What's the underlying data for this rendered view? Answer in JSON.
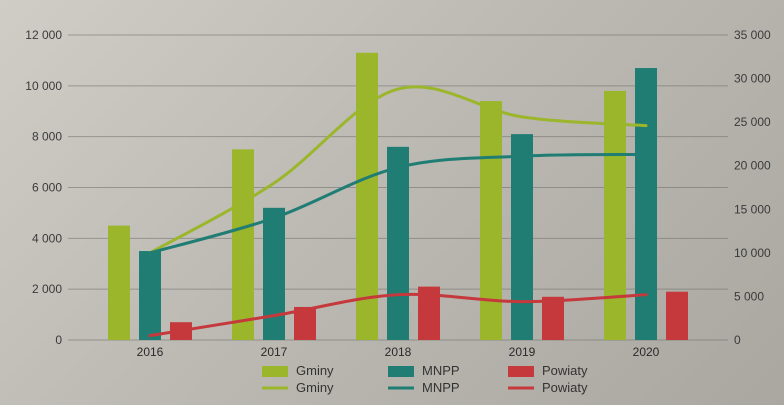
{
  "chart_data": {
    "type": "bar",
    "categories": [
      "2016",
      "2017",
      "2018",
      "2019",
      "2020"
    ],
    "left_axis": {
      "ylim": [
        0,
        12000
      ],
      "ticks": [
        "0",
        "2 000",
        "4 000",
        "6 000",
        "8 000",
        "10 000",
        "12 000"
      ]
    },
    "right_axis": {
      "ylim": [
        0,
        35000
      ],
      "ticks": [
        "0",
        "5 000",
        "10 000",
        "15 000",
        "20 000",
        "25 000",
        "30 000",
        "35 000"
      ]
    },
    "bar_series": [
      {
        "name": "Gminy",
        "axis": "left",
        "color": "#9bb62a",
        "values": [
          4500,
          7500,
          11300,
          9400,
          9800
        ]
      },
      {
        "name": "MNPP",
        "axis": "left",
        "color": "#1f7d74",
        "values": [
          3500,
          5200,
          7600,
          8100,
          10700
        ]
      },
      {
        "name": "Powiaty",
        "axis": "left",
        "color": "#c5383c",
        "values": [
          700,
          1300,
          2100,
          1700,
          1900
        ]
      }
    ],
    "line_series": [
      {
        "name": "Gminy",
        "axis": "right",
        "color": "#9bb62a",
        "values": [
          10000,
          18000,
          28800,
          25600,
          24600
        ]
      },
      {
        "name": "MNPP",
        "axis": "right",
        "color": "#1f7d74",
        "values": [
          10000,
          14000,
          19800,
          21100,
          21300
        ]
      },
      {
        "name": "Powiaty",
        "axis": "right",
        "color": "#c5383c",
        "values": [
          500,
          2800,
          5200,
          4400,
          5200
        ]
      }
    ],
    "legend": {
      "placement": "bottom",
      "bar_labels": [
        "Gminy",
        "MNPP",
        "Powiaty"
      ],
      "line_labels": [
        "Gminy",
        "MNPP",
        "Powiaty"
      ]
    },
    "grid": true
  }
}
